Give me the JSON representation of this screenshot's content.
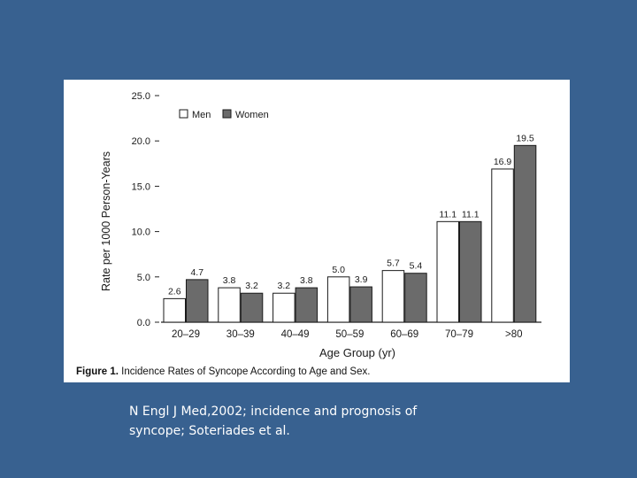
{
  "chart_data": {
    "type": "bar",
    "categories": [
      "20–29",
      "30–39",
      "40–49",
      "50–59",
      "60–69",
      "70–79",
      ">80"
    ],
    "series": [
      {
        "name": "Men",
        "values": [
          2.6,
          3.8,
          3.2,
          5.0,
          5.7,
          11.1,
          16.9
        ],
        "color": "#ffffff"
      },
      {
        "name": "Women",
        "values": [
          4.7,
          3.2,
          3.8,
          3.9,
          5.4,
          11.1,
          19.5
        ],
        "color": "#6b6b6b"
      }
    ],
    "value_labels": {
      "Men": [
        "2.6",
        "3.8",
        "3.2",
        "5.0",
        "5.7",
        "11.1",
        "16.9"
      ],
      "Women": [
        "4.7",
        "3.2",
        "3.8",
        "3.9",
        "5.4",
        "11.1",
        "19.5"
      ]
    },
    "yticks": [
      "0.0",
      "5.0",
      "10.0",
      "15.0",
      "20.0",
      "25.0"
    ],
    "ytick_values": [
      0,
      5,
      10,
      15,
      20,
      25
    ],
    "ylim": [
      0,
      25
    ],
    "xlabel": "Age Group (yr)",
    "ylabel": "Rate per 1000 Person-Years",
    "legend_position": "top-left",
    "grid": false
  },
  "caption": {
    "label": "Figure 1.",
    "text": "Incidence Rates of Syncope According to Age and Sex."
  },
  "citation": {
    "line1": "N Engl J Med,2002; incidence and prognosis of",
    "line2": "syncope; Soteriades et al."
  },
  "colors": {
    "slide_background": "#386190",
    "women_bar": "#6b6b6b",
    "men_bar": "#ffffff"
  }
}
